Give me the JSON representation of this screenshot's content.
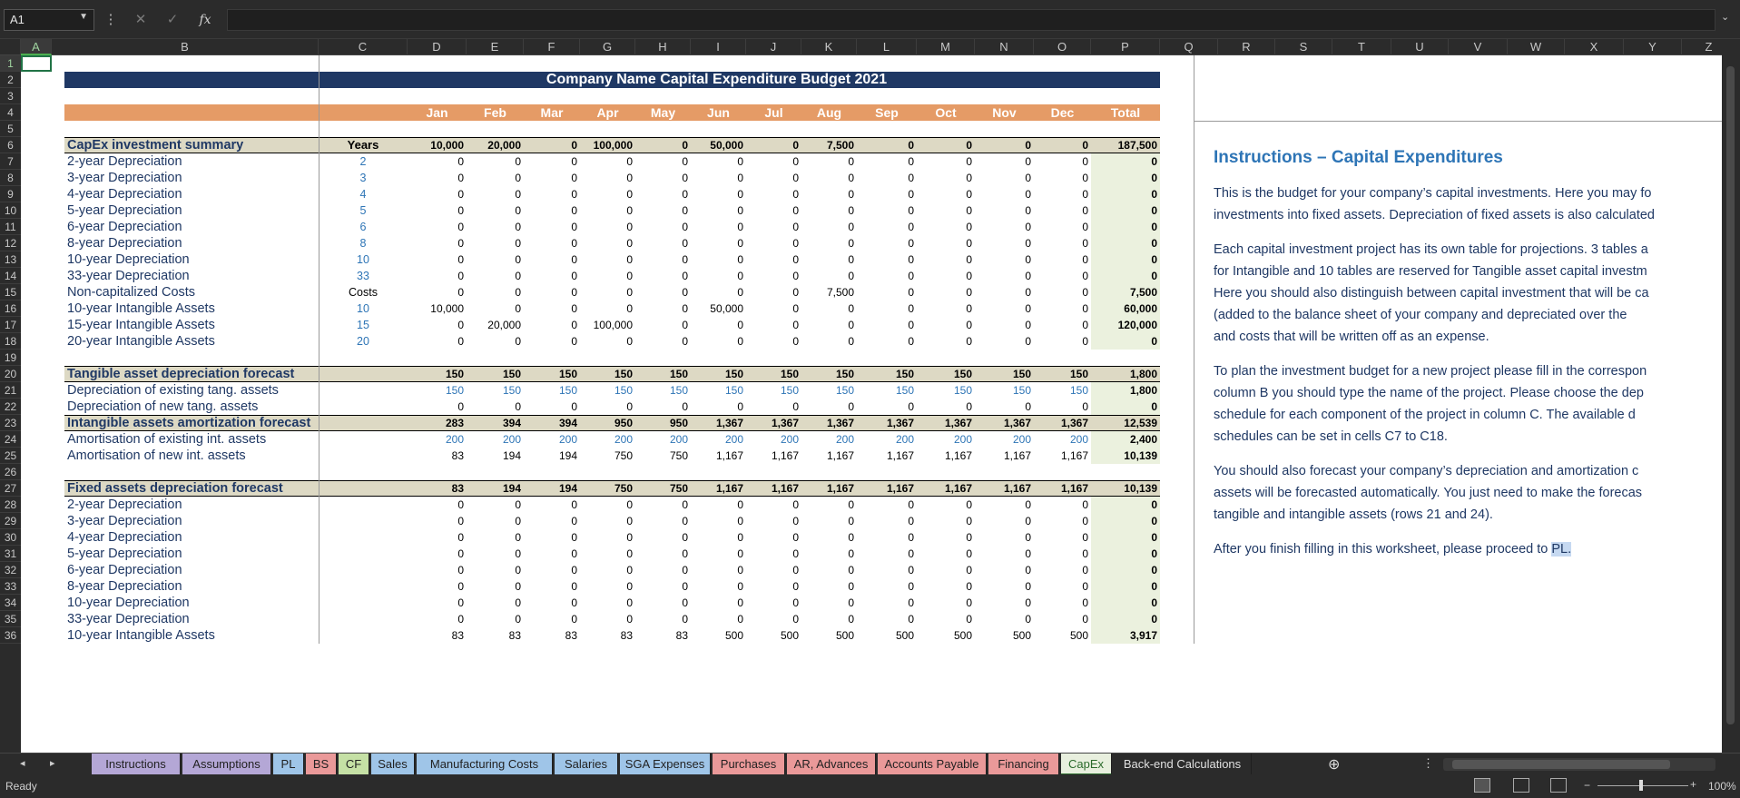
{
  "formula_bar": {
    "name_box": "A1",
    "formula": ""
  },
  "columns": [
    {
      "label": "A",
      "w": 34
    },
    {
      "label": "B",
      "w": 294
    },
    {
      "label": "C",
      "w": 98
    },
    {
      "label": "D",
      "w": 65
    },
    {
      "label": "E",
      "w": 63
    },
    {
      "label": "F",
      "w": 62
    },
    {
      "label": "G",
      "w": 61
    },
    {
      "label": "H",
      "w": 61
    },
    {
      "label": "I",
      "w": 61
    },
    {
      "label": "J",
      "w": 61
    },
    {
      "label": "K",
      "w": 61
    },
    {
      "label": "L",
      "w": 66
    },
    {
      "label": "M",
      "w": 64
    },
    {
      "label": "N",
      "w": 65
    },
    {
      "label": "O",
      "w": 63
    },
    {
      "label": "P",
      "w": 76
    },
    {
      "label": "Q",
      "w": 64
    },
    {
      "label": "R",
      "w": 63
    },
    {
      "label": "S",
      "w": 63
    },
    {
      "label": "T",
      "w": 65
    },
    {
      "label": "U",
      "w": 63
    },
    {
      "label": "V",
      "w": 65
    },
    {
      "label": "W",
      "w": 63
    },
    {
      "label": "X",
      "w": 65
    },
    {
      "label": "Y",
      "w": 64
    },
    {
      "label": "Z",
      "w": 60
    }
  ],
  "row_numbers": [
    "1",
    "2",
    "3",
    "4",
    "5",
    "6",
    "7",
    "8",
    "9",
    "10",
    "11",
    "12",
    "13",
    "14",
    "15",
    "16",
    "17",
    "18",
    "19",
    "20",
    "21",
    "22",
    "23",
    "24",
    "25",
    "26",
    "27",
    "28",
    "29",
    "30",
    "31",
    "32",
    "33",
    "34",
    "35",
    "36"
  ],
  "sheet": {
    "title": "Company Name Capital Expenditure Budget 2021",
    "months": [
      "Jan",
      "Feb",
      "Mar",
      "Apr",
      "May",
      "Jun",
      "Jul",
      "Aug",
      "Sep",
      "Oct",
      "Nov",
      "Dec",
      "Total"
    ],
    "rows": [
      {
        "r": 6,
        "kind": "sum",
        "label": "CapEx investment summary",
        "c": "Years",
        "vals": [
          "10,000",
          "20,000",
          "0",
          "100,000",
          "0",
          "50,000",
          "0",
          "7,500",
          "0",
          "0",
          "0",
          "0"
        ],
        "total": "187,500"
      },
      {
        "r": 7,
        "label": "2-year Depreciation",
        "c": "2",
        "cblue": true,
        "vals": [
          "0",
          "0",
          "0",
          "0",
          "0",
          "0",
          "0",
          "0",
          "0",
          "0",
          "0",
          "0"
        ],
        "total": "0"
      },
      {
        "r": 8,
        "label": "3-year Depreciation",
        "c": "3",
        "cblue": true,
        "vals": [
          "0",
          "0",
          "0",
          "0",
          "0",
          "0",
          "0",
          "0",
          "0",
          "0",
          "0",
          "0"
        ],
        "total": "0"
      },
      {
        "r": 9,
        "label": "4-year Depreciation",
        "c": "4",
        "cblue": true,
        "vals": [
          "0",
          "0",
          "0",
          "0",
          "0",
          "0",
          "0",
          "0",
          "0",
          "0",
          "0",
          "0"
        ],
        "total": "0"
      },
      {
        "r": 10,
        "label": "5-year Depreciation",
        "c": "5",
        "cblue": true,
        "vals": [
          "0",
          "0",
          "0",
          "0",
          "0",
          "0",
          "0",
          "0",
          "0",
          "0",
          "0",
          "0"
        ],
        "total": "0"
      },
      {
        "r": 11,
        "label": "6-year Depreciation",
        "c": "6",
        "cblue": true,
        "vals": [
          "0",
          "0",
          "0",
          "0",
          "0",
          "0",
          "0",
          "0",
          "0",
          "0",
          "0",
          "0"
        ],
        "total": "0"
      },
      {
        "r": 12,
        "label": "8-year Depreciation",
        "c": "8",
        "cblue": true,
        "vals": [
          "0",
          "0",
          "0",
          "0",
          "0",
          "0",
          "0",
          "0",
          "0",
          "0",
          "0",
          "0"
        ],
        "total": "0"
      },
      {
        "r": 13,
        "label": "10-year Depreciation",
        "c": "10",
        "cblue": true,
        "vals": [
          "0",
          "0",
          "0",
          "0",
          "0",
          "0",
          "0",
          "0",
          "0",
          "0",
          "0",
          "0"
        ],
        "total": "0"
      },
      {
        "r": 14,
        "label": "33-year Depreciation",
        "c": "33",
        "cblue": true,
        "vals": [
          "0",
          "0",
          "0",
          "0",
          "0",
          "0",
          "0",
          "0",
          "0",
          "0",
          "0",
          "0"
        ],
        "total": "0"
      },
      {
        "r": 15,
        "label": "Non-capitalized Costs",
        "c": "Costs",
        "vals": [
          "0",
          "0",
          "0",
          "0",
          "0",
          "0",
          "0",
          "7,500",
          "0",
          "0",
          "0",
          "0"
        ],
        "total": "7,500"
      },
      {
        "r": 16,
        "label": "10-year Intangible Assets",
        "c": "10",
        "cblue": true,
        "vals": [
          "10,000",
          "0",
          "0",
          "0",
          "0",
          "50,000",
          "0",
          "0",
          "0",
          "0",
          "0",
          "0"
        ],
        "total": "60,000"
      },
      {
        "r": 17,
        "label": "15-year Intangible Assets",
        "c": "15",
        "cblue": true,
        "vals": [
          "0",
          "20,000",
          "0",
          "100,000",
          "0",
          "0",
          "0",
          "0",
          "0",
          "0",
          "0",
          "0"
        ],
        "total": "120,000"
      },
      {
        "r": 18,
        "label": "20-year Intangible Assets",
        "c": "20",
        "cblue": true,
        "vals": [
          "0",
          "0",
          "0",
          "0",
          "0",
          "0",
          "0",
          "0",
          "0",
          "0",
          "0",
          "0"
        ],
        "total": "0"
      },
      {
        "r": 20,
        "kind": "sum",
        "label": "Tangible asset depreciation forecast",
        "c": "",
        "vals": [
          "150",
          "150",
          "150",
          "150",
          "150",
          "150",
          "150",
          "150",
          "150",
          "150",
          "150",
          "150"
        ],
        "total": "1,800"
      },
      {
        "r": 21,
        "label": "Depreciation of existing tang. assets",
        "c": "",
        "vblue": true,
        "vals": [
          "150",
          "150",
          "150",
          "150",
          "150",
          "150",
          "150",
          "150",
          "150",
          "150",
          "150",
          "150"
        ],
        "total": "1,800"
      },
      {
        "r": 22,
        "label": "Depreciation of new tang. assets",
        "c": "",
        "vals": [
          "0",
          "0",
          "0",
          "0",
          "0",
          "0",
          "0",
          "0",
          "0",
          "0",
          "0",
          "0"
        ],
        "total": "0"
      },
      {
        "r": 23,
        "kind": "sum",
        "label": "Intangible assets amortization forecast",
        "c": "",
        "vals": [
          "283",
          "394",
          "394",
          "950",
          "950",
          "1,367",
          "1,367",
          "1,367",
          "1,367",
          "1,367",
          "1,367",
          "1,367"
        ],
        "total": "12,539"
      },
      {
        "r": 24,
        "label": "Amortisation of existing int. assets",
        "c": "",
        "vblue": true,
        "vals": [
          "200",
          "200",
          "200",
          "200",
          "200",
          "200",
          "200",
          "200",
          "200",
          "200",
          "200",
          "200"
        ],
        "total": "2,400"
      },
      {
        "r": 25,
        "label": "Amortisation of new int. assets",
        "c": "",
        "vals": [
          "83",
          "194",
          "194",
          "750",
          "750",
          "1,167",
          "1,167",
          "1,167",
          "1,167",
          "1,167",
          "1,167",
          "1,167"
        ],
        "total": "10,139"
      },
      {
        "r": 27,
        "kind": "sum",
        "label": "Fixed assets depreciation forecast",
        "c": "",
        "vals": [
          "83",
          "194",
          "194",
          "750",
          "750",
          "1,167",
          "1,167",
          "1,167",
          "1,167",
          "1,167",
          "1,167",
          "1,167"
        ],
        "total": "10,139"
      },
      {
        "r": 28,
        "label": "2-year Depreciation",
        "c": "",
        "vals": [
          "0",
          "0",
          "0",
          "0",
          "0",
          "0",
          "0",
          "0",
          "0",
          "0",
          "0",
          "0"
        ],
        "total": "0"
      },
      {
        "r": 29,
        "label": "3-year Depreciation",
        "c": "",
        "vals": [
          "0",
          "0",
          "0",
          "0",
          "0",
          "0",
          "0",
          "0",
          "0",
          "0",
          "0",
          "0"
        ],
        "total": "0"
      },
      {
        "r": 30,
        "label": "4-year Depreciation",
        "c": "",
        "vals": [
          "0",
          "0",
          "0",
          "0",
          "0",
          "0",
          "0",
          "0",
          "0",
          "0",
          "0",
          "0"
        ],
        "total": "0"
      },
      {
        "r": 31,
        "label": "5-year Depreciation",
        "c": "",
        "vals": [
          "0",
          "0",
          "0",
          "0",
          "0",
          "0",
          "0",
          "0",
          "0",
          "0",
          "0",
          "0"
        ],
        "total": "0"
      },
      {
        "r": 32,
        "label": "6-year Depreciation",
        "c": "",
        "vals": [
          "0",
          "0",
          "0",
          "0",
          "0",
          "0",
          "0",
          "0",
          "0",
          "0",
          "0",
          "0"
        ],
        "total": "0"
      },
      {
        "r": 33,
        "label": "8-year Depreciation",
        "c": "",
        "vals": [
          "0",
          "0",
          "0",
          "0",
          "0",
          "0",
          "0",
          "0",
          "0",
          "0",
          "0",
          "0"
        ],
        "total": "0"
      },
      {
        "r": 34,
        "label": "10-year Depreciation",
        "c": "",
        "vals": [
          "0",
          "0",
          "0",
          "0",
          "0",
          "0",
          "0",
          "0",
          "0",
          "0",
          "0",
          "0"
        ],
        "total": "0"
      },
      {
        "r": 35,
        "label": "33-year Depreciation",
        "c": "",
        "vals": [
          "0",
          "0",
          "0",
          "0",
          "0",
          "0",
          "0",
          "0",
          "0",
          "0",
          "0",
          "0"
        ],
        "total": "0"
      },
      {
        "r": 36,
        "label": "10-year Intangible Assets",
        "c": "",
        "vals": [
          "83",
          "83",
          "83",
          "83",
          "83",
          "500",
          "500",
          "500",
          "500",
          "500",
          "500",
          "500"
        ],
        "total": "3,917"
      }
    ]
  },
  "instructions": {
    "title": "Instructions – Capital Expenditures",
    "paragraphs": [
      [
        "This is the budget for your company’s capital investments. Here you may fo",
        "investments into fixed assets. Depreciation of fixed assets is also calculated"
      ],
      [
        "Each capital investment project has its own table for projections. 3 tables a",
        "for Intangible and 10 tables are reserved for Tangible asset capital investm",
        "Here you should also distinguish between capital investment that will be ca",
        "(added to the balance sheet of your company and depreciated over the",
        "and costs that will be written off as an expense."
      ],
      [
        "To plan the investment budget for a new project please fill in the correspon",
        "column B you should type the name of the project. Please choose the dep",
        "schedule for each component of the project in column C. The available d",
        "schedules can be set in cells C7 to C18."
      ],
      [
        "You should also forecast your company’s depreciation and amortization c",
        "assets will be forecasted automatically. You just need to make the forecas",
        "tangible and intangible assets (rows 21 and 24)."
      ]
    ],
    "last_prefix": "After you finish filling in this worksheet, please proceed to ",
    "last_link": "PL."
  },
  "tabs": [
    {
      "label": "Instructions",
      "color": "#b4a7d6",
      "w": 98
    },
    {
      "label": "Assumptions",
      "color": "#b4a7d6",
      "w": 98
    },
    {
      "label": "PL",
      "color": "#9fc5e8",
      "w": 34
    },
    {
      "label": "BS",
      "color": "#ea9999",
      "w": 34
    },
    {
      "label": "CF",
      "color": "#c5e0a5",
      "w": 34
    },
    {
      "label": "Sales",
      "color": "#9fc5e8",
      "w": 48
    },
    {
      "label": "Manufacturing Costs",
      "color": "#9fc5e8",
      "w": 150
    },
    {
      "label": "Salaries",
      "color": "#9fc5e8",
      "w": 70
    },
    {
      "label": "SGA Expenses",
      "color": "#9fc5e8",
      "w": 100
    },
    {
      "label": "Purchases",
      "color": "#ea9999",
      "w": 80
    },
    {
      "label": "AR, Advances",
      "color": "#ea9999",
      "w": 98
    },
    {
      "label": "Accounts Payable",
      "color": "#ea9999",
      "w": 120
    },
    {
      "label": "Financing",
      "color": "#ea9999",
      "w": 78
    },
    {
      "label": "CapEx",
      "color": "#e8efde",
      "w": 56,
      "active": true
    },
    {
      "label": "Back-end Calculations",
      "color": "#2b2b2b",
      "w": 152,
      "plain": true
    }
  ],
  "status": {
    "ready": "Ready",
    "zoom": "100%"
  }
}
